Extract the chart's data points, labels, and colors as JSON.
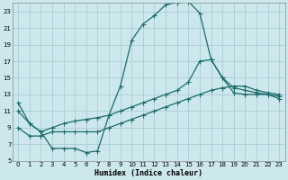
{
  "xlabel": "Humidex (Indice chaleur)",
  "background_color": "#cde8ec",
  "grid_color": "#aacdd4",
  "line_color": "#1a6b6b",
  "xlim": [
    -0.5,
    23.5
  ],
  "ylim": [
    5,
    24
  ],
  "xticks": [
    0,
    1,
    2,
    3,
    4,
    5,
    6,
    7,
    8,
    9,
    10,
    11,
    12,
    13,
    14,
    15,
    16,
    17,
    18,
    19,
    20,
    21,
    22,
    23
  ],
  "yticks": [
    5,
    7,
    9,
    11,
    13,
    15,
    17,
    19,
    21,
    23
  ],
  "line1_x": [
    0,
    1,
    2,
    3,
    4,
    5,
    6,
    7,
    8,
    9,
    10,
    11,
    12,
    13,
    14,
    15,
    16,
    17,
    18,
    19,
    20,
    21,
    22,
    23
  ],
  "line1_y": [
    12.0,
    9.5,
    8.5,
    6.5,
    6.5,
    6.5,
    6.0,
    6.2,
    10.5,
    14.0,
    19.5,
    21.5,
    22.5,
    23.8,
    24.1,
    24.2,
    22.8,
    17.2,
    15.0,
    13.2,
    13.0,
    13.0,
    13.0,
    12.5
  ],
  "line2_x": [
    0,
    1,
    2,
    3,
    4,
    5,
    6,
    7,
    8,
    9,
    10,
    11,
    12,
    13,
    14,
    15,
    16,
    17,
    18,
    19,
    20,
    21,
    22,
    23
  ],
  "line2_y": [
    11.0,
    9.5,
    8.5,
    9.0,
    9.5,
    9.8,
    10.0,
    10.2,
    10.5,
    11.0,
    11.5,
    12.0,
    12.5,
    13.0,
    13.5,
    14.5,
    17.0,
    17.2,
    15.0,
    13.8,
    13.5,
    13.2,
    13.0,
    12.8
  ],
  "line3_x": [
    0,
    1,
    2,
    3,
    4,
    5,
    6,
    7,
    8,
    9,
    10,
    11,
    12,
    13,
    14,
    15,
    16,
    17,
    18,
    19,
    20,
    21,
    22,
    23
  ],
  "line3_y": [
    9.0,
    8.0,
    8.0,
    8.5,
    8.5,
    8.5,
    8.5,
    8.5,
    9.0,
    9.5,
    10.0,
    10.5,
    11.0,
    11.5,
    12.0,
    12.5,
    13.0,
    13.5,
    13.8,
    14.0,
    14.0,
    13.5,
    13.2,
    13.0
  ]
}
